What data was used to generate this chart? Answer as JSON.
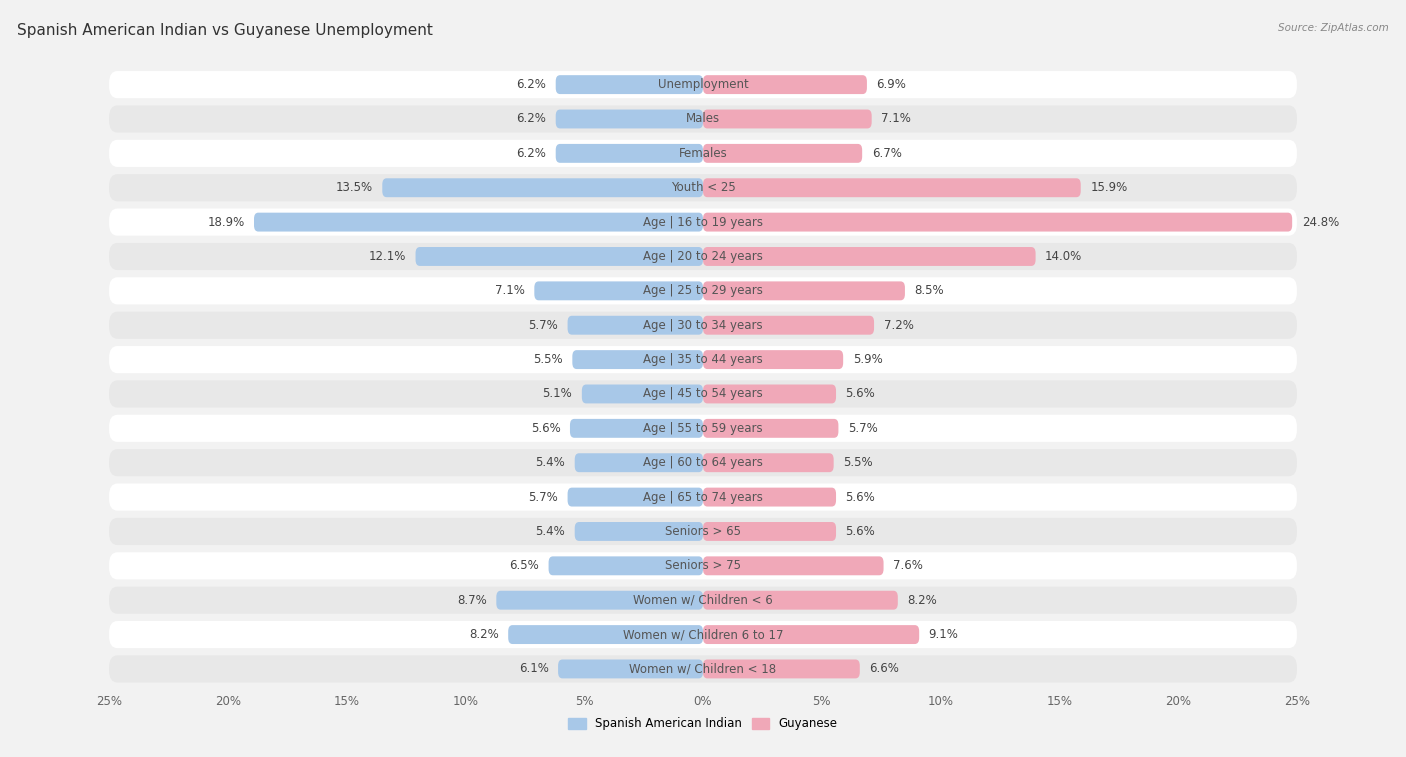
{
  "title": "Spanish American Indian vs Guyanese Unemployment",
  "source": "Source: ZipAtlas.com",
  "categories": [
    "Unemployment",
    "Males",
    "Females",
    "Youth < 25",
    "Age | 16 to 19 years",
    "Age | 20 to 24 years",
    "Age | 25 to 29 years",
    "Age | 30 to 34 years",
    "Age | 35 to 44 years",
    "Age | 45 to 54 years",
    "Age | 55 to 59 years",
    "Age | 60 to 64 years",
    "Age | 65 to 74 years",
    "Seniors > 65",
    "Seniors > 75",
    "Women w/ Children < 6",
    "Women w/ Children 6 to 17",
    "Women w/ Children < 18"
  ],
  "spanish_american_indian": [
    6.2,
    6.2,
    6.2,
    13.5,
    18.9,
    12.1,
    7.1,
    5.7,
    5.5,
    5.1,
    5.6,
    5.4,
    5.7,
    5.4,
    6.5,
    8.7,
    8.2,
    6.1
  ],
  "guyanese": [
    6.9,
    7.1,
    6.7,
    15.9,
    24.8,
    14.0,
    8.5,
    7.2,
    5.9,
    5.6,
    5.7,
    5.5,
    5.6,
    5.6,
    7.6,
    8.2,
    9.1,
    6.6
  ],
  "blue_color": "#a8c8e8",
  "pink_color": "#f0a8b8",
  "bg_color": "#f2f2f2",
  "row_bg_white": "#ffffff",
  "row_bg_gray": "#e8e8e8",
  "xlim": 25.0,
  "title_fontsize": 11,
  "label_fontsize": 8.5,
  "tick_fontsize": 8.5,
  "value_fontsize": 8.5
}
